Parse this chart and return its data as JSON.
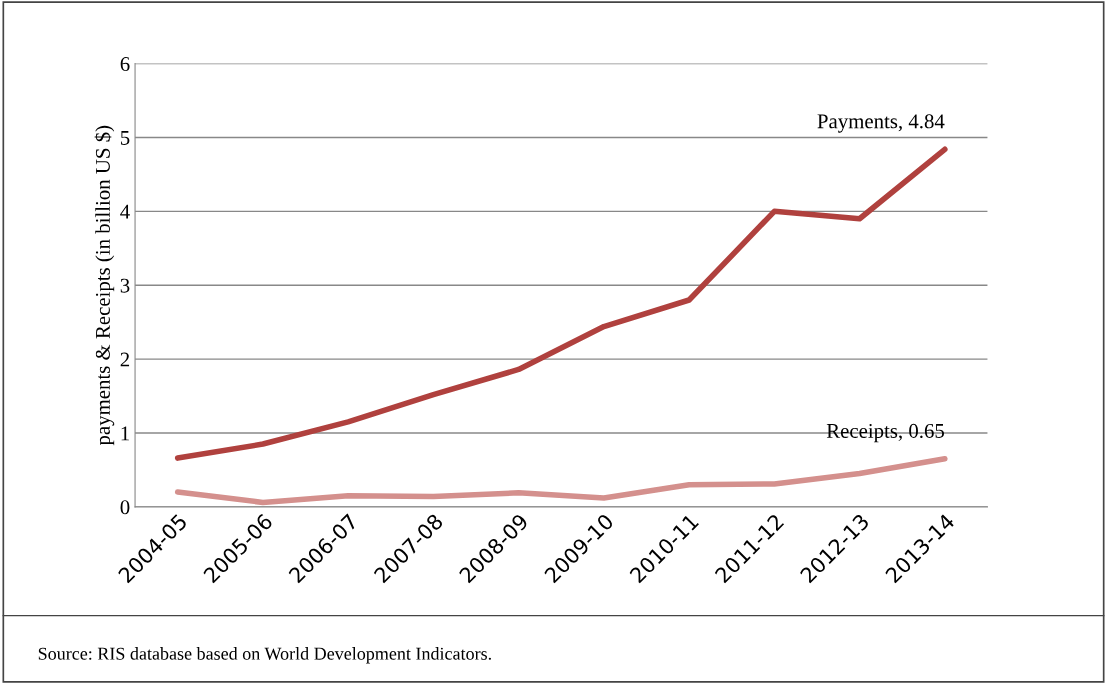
{
  "chart_data": {
    "type": "line",
    "ylabel": "payments & Receipts (in billion US $)",
    "categories": [
      "2004-05",
      "2005-06",
      "2006-07",
      "2007-08",
      "2008-09",
      "2009-10",
      "2010-11",
      "2011-12",
      "2012-13",
      "2013-14"
    ],
    "series": [
      {
        "color": "#b0413e",
        "values": [
          0.66,
          0.85,
          1.15,
          1.52,
          1.86,
          2.44,
          2.8,
          4.0,
          3.9,
          4.84
        ]
      },
      {
        "color": "#d4908d",
        "values": [
          0.2,
          0.06,
          0.15,
          0.14,
          0.19,
          0.12,
          0.3,
          0.31,
          0.45,
          0.65
        ]
      }
    ],
    "ylim": [
      0,
      6
    ],
    "yticks": [
      0,
      1,
      2,
      3,
      4,
      5,
      6
    ],
    "grid": "y",
    "marker": "none",
    "line_style": "solid",
    "annotations": [
      {
        "text": "Payments, 4.84",
        "x": "2013-14",
        "y": 4.84
      },
      {
        "text": "Receipts, 0.65",
        "x": "2013-14",
        "y": 0.65
      },
      "Source: RIS database based on World Development Indicators."
    ]
  }
}
